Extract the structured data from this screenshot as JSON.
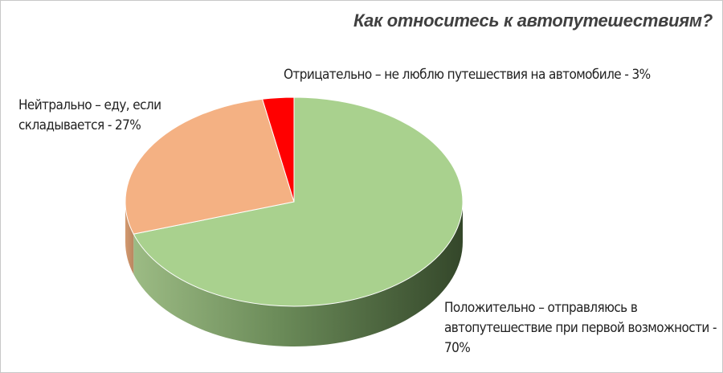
{
  "chart_data": {
    "type": "pie",
    "title": "Как относитесь к автопутешествиям?",
    "values": [
      70,
      27,
      3
    ],
    "value_labels": [
      "Положительно – отправляюсь в автопутешествие при первой возможности - 70%",
      "Нейтрально – еду, если складывается - 27%",
      "Отрицательно – не люблю путешествия на автомобиле - 3%"
    ],
    "colors": [
      "#a9d18e",
      "#f4b183",
      "#ff0000"
    ]
  }
}
